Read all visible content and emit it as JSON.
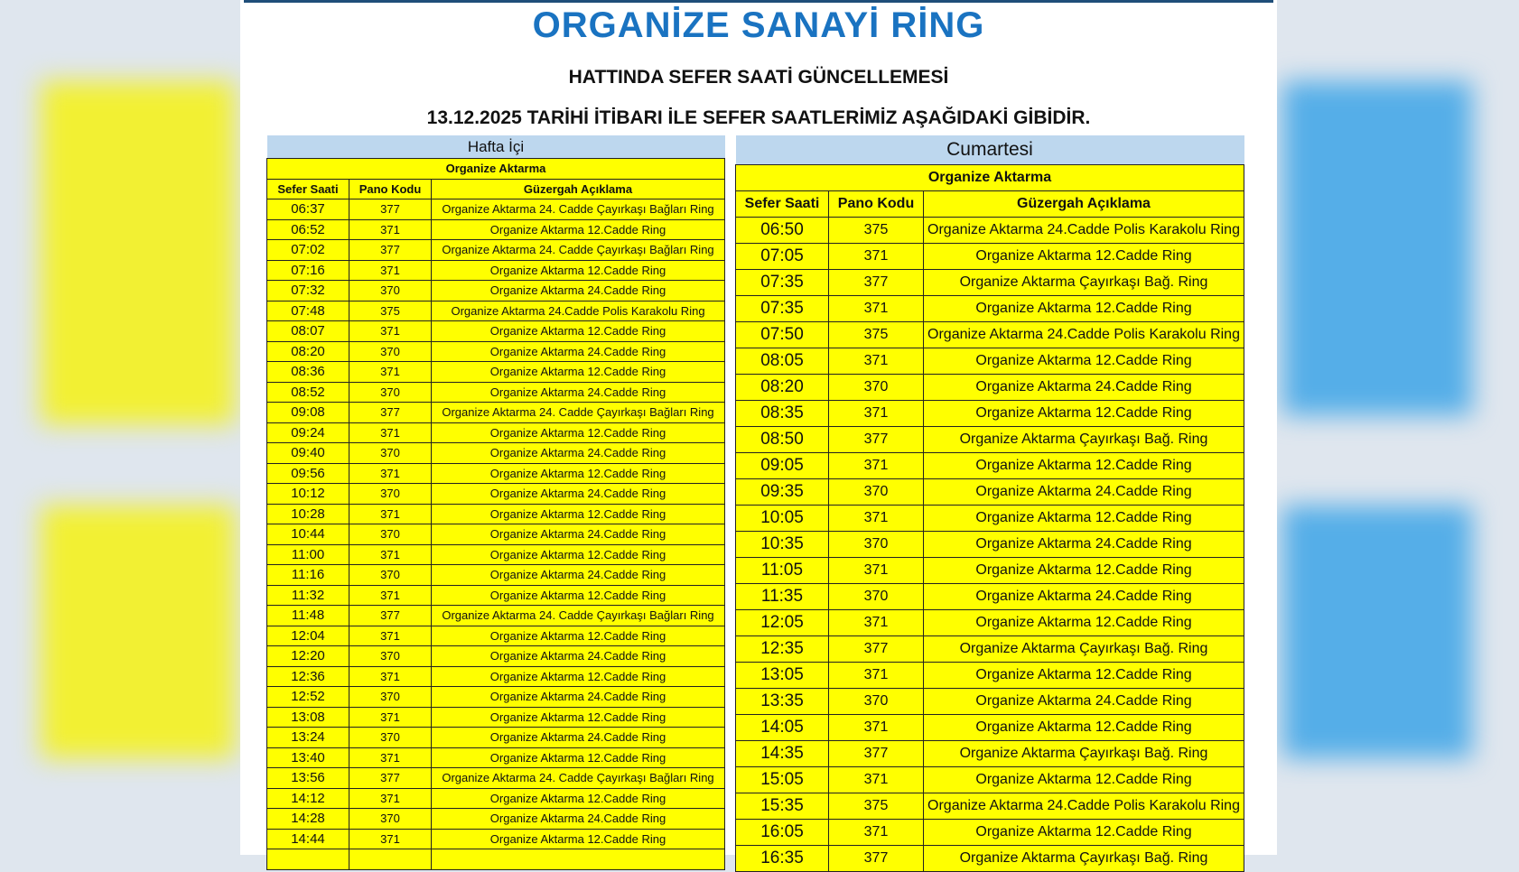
{
  "header": {
    "title": "ORGANİZE SANAYİ RİNG",
    "subtitle": "HATTINDA SEFER SAATİ GÜNCELLEMESİ",
    "notice": "13.12.2025 TARİHİ İTİBARI İLE SEFER SAATLERİMİZ AŞAĞIDAKİ GİBİDİR."
  },
  "colors": {
    "title": "#1a73c1",
    "row_bg": "#ffff00",
    "day_header_bg": "#bdd7ee"
  },
  "weekday": {
    "day": "Hafta İçi",
    "stop": "Organize Aktarma",
    "columns": [
      "Sefer Saati",
      "Pano Kodu",
      "Güzergah Açıklama"
    ],
    "rows": [
      [
        "06:37",
        "377",
        "Organize Aktarma 24. Cadde Çayırkaşı Bağları Ring"
      ],
      [
        "06:52",
        "371",
        "Organize Aktarma 12.Cadde Ring"
      ],
      [
        "07:02",
        "377",
        "Organize Aktarma 24. Cadde Çayırkaşı Bağları Ring"
      ],
      [
        "07:16",
        "371",
        "Organize Aktarma 12.Cadde Ring"
      ],
      [
        "07:32",
        "370",
        "Organize Aktarma 24.Cadde Ring"
      ],
      [
        "07:48",
        "375",
        "Organize Aktarma 24.Cadde Polis Karakolu Ring"
      ],
      [
        "08:07",
        "371",
        "Organize Aktarma 12.Cadde Ring"
      ],
      [
        "08:20",
        "370",
        "Organize Aktarma 24.Cadde Ring"
      ],
      [
        "08:36",
        "371",
        "Organize Aktarma 12.Cadde Ring"
      ],
      [
        "08:52",
        "370",
        "Organize Aktarma 24.Cadde Ring"
      ],
      [
        "09:08",
        "377",
        "Organize Aktarma 24. Cadde Çayırkaşı Bağları Ring"
      ],
      [
        "09:24",
        "371",
        "Organize Aktarma 12.Cadde Ring"
      ],
      [
        "09:40",
        "370",
        "Organize Aktarma 24.Cadde Ring"
      ],
      [
        "09:56",
        "371",
        "Organize Aktarma 12.Cadde Ring"
      ],
      [
        "10:12",
        "370",
        "Organize Aktarma 24.Cadde Ring"
      ],
      [
        "10:28",
        "371",
        "Organize Aktarma 12.Cadde Ring"
      ],
      [
        "10:44",
        "370",
        "Organize Aktarma 24.Cadde Ring"
      ],
      [
        "11:00",
        "371",
        "Organize Aktarma 12.Cadde Ring"
      ],
      [
        "11:16",
        "370",
        "Organize Aktarma 24.Cadde Ring"
      ],
      [
        "11:32",
        "371",
        "Organize Aktarma 12.Cadde Ring"
      ],
      [
        "11:48",
        "377",
        "Organize Aktarma 24. Cadde Çayırkaşı Bağları Ring"
      ],
      [
        "12:04",
        "371",
        "Organize Aktarma 12.Cadde Ring"
      ],
      [
        "12:20",
        "370",
        "Organize Aktarma 24.Cadde Ring"
      ],
      [
        "12:36",
        "371",
        "Organize Aktarma 12.Cadde Ring"
      ],
      [
        "12:52",
        "370",
        "Organize Aktarma 24.Cadde Ring"
      ],
      [
        "13:08",
        "371",
        "Organize Aktarma 12.Cadde Ring"
      ],
      [
        "13:24",
        "370",
        "Organize Aktarma 24.Cadde Ring"
      ],
      [
        "13:40",
        "371",
        "Organize Aktarma 12.Cadde Ring"
      ],
      [
        "13:56",
        "377",
        "Organize Aktarma 24. Cadde Çayırkaşı Bağları Ring"
      ],
      [
        "14:12",
        "371",
        "Organize Aktarma 12.Cadde Ring"
      ],
      [
        "14:28",
        "370",
        "Organize Aktarma 24.Cadde Ring"
      ],
      [
        "14:44",
        "371",
        "Organize Aktarma 12.Cadde Ring"
      ],
      [
        "",
        "",
        ""
      ]
    ]
  },
  "saturday": {
    "day": "Cumartesi",
    "stop": "Organize Aktarma",
    "columns": [
      "Sefer Saati",
      "Pano Kodu",
      "Güzergah Açıklama"
    ],
    "rows": [
      [
        "06:50",
        "375",
        "Organize Aktarma 24.Cadde Polis Karakolu Ring"
      ],
      [
        "07:05",
        "371",
        "Organize Aktarma 12.Cadde Ring"
      ],
      [
        "07:35",
        "377",
        "Organize Aktarma Çayırkaşı Bağ. Ring"
      ],
      [
        "07:35",
        "371",
        "Organize Aktarma 12.Cadde Ring"
      ],
      [
        "07:50",
        "375",
        "Organize Aktarma 24.Cadde Polis Karakolu Ring"
      ],
      [
        "08:05",
        "371",
        "Organize Aktarma 12.Cadde Ring"
      ],
      [
        "08:20",
        "370",
        "Organize Aktarma 24.Cadde Ring"
      ],
      [
        "08:35",
        "371",
        "Organize Aktarma 12.Cadde Ring"
      ],
      [
        "08:50",
        "377",
        "Organize Aktarma Çayırkaşı Bağ. Ring"
      ],
      [
        "09:05",
        "371",
        "Organize Aktarma 12.Cadde Ring"
      ],
      [
        "09:35",
        "370",
        "Organize Aktarma 24.Cadde Ring"
      ],
      [
        "10:05",
        "371",
        "Organize Aktarma 12.Cadde Ring"
      ],
      [
        "10:35",
        "370",
        "Organize Aktarma 24.Cadde Ring"
      ],
      [
        "11:05",
        "371",
        "Organize Aktarma 12.Cadde Ring"
      ],
      [
        "11:35",
        "370",
        "Organize Aktarma 24.Cadde Ring"
      ],
      [
        "12:05",
        "371",
        "Organize Aktarma 12.Cadde Ring"
      ],
      [
        "12:35",
        "377",
        "Organize Aktarma Çayırkaşı Bağ. Ring"
      ],
      [
        "13:05",
        "371",
        "Organize Aktarma 12.Cadde Ring"
      ],
      [
        "13:35",
        "370",
        "Organize Aktarma 24.Cadde Ring"
      ],
      [
        "14:05",
        "371",
        "Organize Aktarma 12.Cadde Ring"
      ],
      [
        "14:35",
        "377",
        "Organize Aktarma Çayırkaşı Bağ. Ring"
      ],
      [
        "15:05",
        "371",
        "Organize Aktarma 12.Cadde Ring"
      ],
      [
        "15:35",
        "375",
        "Organize Aktarma 24.Cadde Polis Karakolu Ring"
      ],
      [
        "16:05",
        "371",
        "Organize Aktarma 12.Cadde Ring"
      ],
      [
        "16:35",
        "377",
        "Organize Aktarma Çayırkaşı Bağ. Ring"
      ]
    ]
  }
}
